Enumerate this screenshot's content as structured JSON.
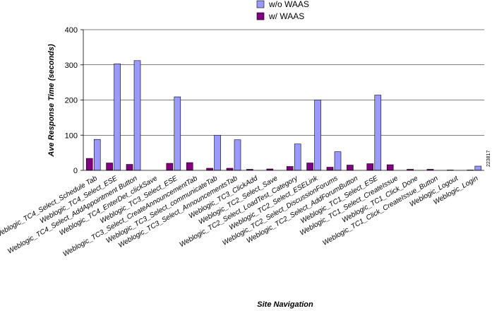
{
  "chart_data": {
    "type": "bar",
    "categories": [
      "Weblogic_TC4_Select_Schedule Tab",
      "Weblogic_TC4_Select_ESE",
      "Weblogic_TC4_Select_AddAppointment Button",
      "Weblogic_TC4_EnterDet_clickSave",
      "Weblogic_TC3_Select_ESE",
      "Weblogic_TC3_Select_CreateAnnouncementTab",
      "Weblogic_TC3_Select_communicateTab",
      "Weblogic_TC3_Select_AnnouncementsTab",
      "Weblogic_TC3_ClickAdd",
      "Weblogic_TC2_Select_Save",
      "Weblogic_TC2_Select_LoadTest_Category",
      "Weblogic_TC2_Select_ESELink",
      "Weblogic_TC2_Select_DiscussionForums",
      "Weblogic_TC2_Select_AddForumButton",
      "Weblogic_TC1_Select_ESE",
      "Weblogic_TC1_Select_CreateIssue",
      "Weblogic_TC1_Click_Done",
      "Weblogic_TC1_Click_CreateIssue_Button",
      "Weblogic_Logout",
      "Weblogic_Login"
    ],
    "series": [
      {
        "name": "w/o WAAS",
        "color": "#9999ff",
        "values": [
          88,
          303,
          312,
          0,
          209,
          0,
          100,
          87,
          0,
          0,
          75,
          200,
          53,
          0,
          214,
          0,
          0,
          0,
          0,
          12
        ]
      },
      {
        "name": "w/ WAAS",
        "color": "#800080",
        "values": [
          34,
          21,
          17,
          0,
          20,
          22,
          6,
          6,
          3,
          4,
          11,
          21,
          9,
          15,
          19,
          16,
          3,
          3,
          1,
          1
        ]
      }
    ],
    "ylabel": "Ave Response Time (seconds)",
    "xlabel": "Site Navigation",
    "ylim": [
      0,
      400
    ],
    "yticks": [
      0,
      100,
      200,
      300,
      400
    ],
    "grid": true,
    "legend_position": "top-center"
  },
  "side_code": "223817"
}
